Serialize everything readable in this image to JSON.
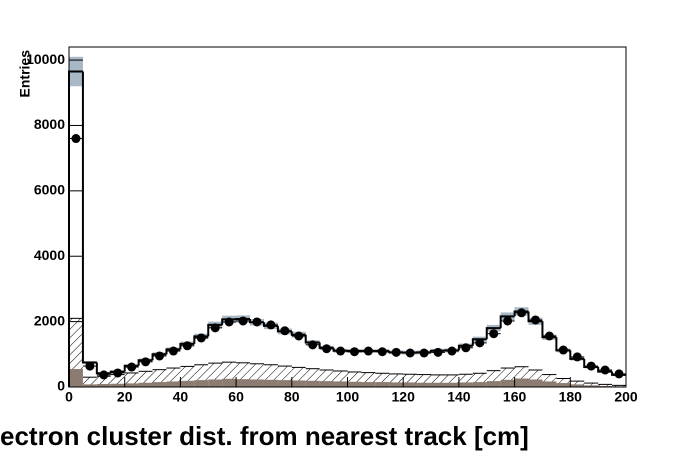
{
  "chart_data": {
    "type": "histogram",
    "x_label": "ectron cluster dist. from nearest track [cm]",
    "y_label": "Entries",
    "bins": [
      0,
      5,
      10,
      15,
      20,
      25,
      30,
      35,
      40,
      45,
      50,
      55,
      60,
      65,
      70,
      75,
      80,
      85,
      90,
      95,
      100,
      105,
      110,
      115,
      120,
      125,
      130,
      135,
      140,
      145,
      150,
      155,
      160,
      165,
      170,
      175,
      180,
      185,
      190,
      195,
      200
    ],
    "xlim": [
      0,
      200
    ],
    "ylim": [
      0,
      10400
    ],
    "xticks": [
      0,
      20,
      40,
      60,
      80,
      100,
      120,
      140,
      160,
      180,
      200
    ],
    "yticks": [
      0,
      2000,
      4000,
      6000,
      8000,
      10000
    ],
    "series": [
      {
        "style": "hatched",
        "color": "#000000",
        "values": [
          2100,
          300,
          330,
          380,
          430,
          480,
          530,
          580,
          630,
          680,
          730,
          760,
          740,
          710,
          680,
          640,
          600,
          560,
          520,
          490,
          460,
          440,
          420,
          400,
          390,
          380,
          370,
          370,
          390,
          420,
          500,
          580,
          620,
          520,
          380,
          260,
          180,
          120,
          80,
          50
        ]
      },
      {
        "style": "filled",
        "color": "#8c7b70",
        "values": [
          550,
          80,
          90,
          100,
          110,
          130,
          150,
          170,
          190,
          210,
          230,
          250,
          240,
          230,
          220,
          210,
          200,
          190,
          180,
          170,
          160,
          150,
          150,
          140,
          140,
          130,
          130,
          130,
          140,
          150,
          180,
          220,
          260,
          230,
          170,
          120,
          80,
          50,
          30,
          20
        ]
      },
      {
        "style": "step",
        "color": "#000000",
        "error_color": "#a9b8c6",
        "values": [
          9650,
          750,
          420,
          470,
          650,
          820,
          1000,
          1150,
          1320,
          1550,
          1900,
          2070,
          2080,
          1980,
          1870,
          1700,
          1600,
          1360,
          1200,
          1110,
          1100,
          1100,
          1100,
          1060,
          1050,
          1060,
          1110,
          1120,
          1260,
          1460,
          1800,
          2160,
          2310,
          2010,
          1520,
          1120,
          860,
          610,
          470,
          370
        ],
        "errors": [
          450,
          40,
          30,
          30,
          40,
          50,
          60,
          60,
          70,
          80,
          100,
          110,
          110,
          100,
          100,
          90,
          90,
          70,
          60,
          60,
          60,
          60,
          60,
          60,
          60,
          60,
          60,
          60,
          70,
          80,
          100,
          120,
          130,
          110,
          80,
          60,
          50,
          40,
          30,
          30
        ]
      },
      {
        "style": "points",
        "color": "#000000",
        "values": [
          7600,
          640,
          370,
          430,
          610,
          770,
          950,
          1100,
          1260,
          1500,
          1810,
          1990,
          2020,
          1990,
          1900,
          1720,
          1560,
          1290,
          1170,
          1100,
          1080,
          1100,
          1080,
          1060,
          1040,
          1040,
          1060,
          1100,
          1200,
          1350,
          1630,
          2020,
          2270,
          2050,
          1560,
          1130,
          920,
          640,
          520,
          400
        ]
      }
    ]
  }
}
